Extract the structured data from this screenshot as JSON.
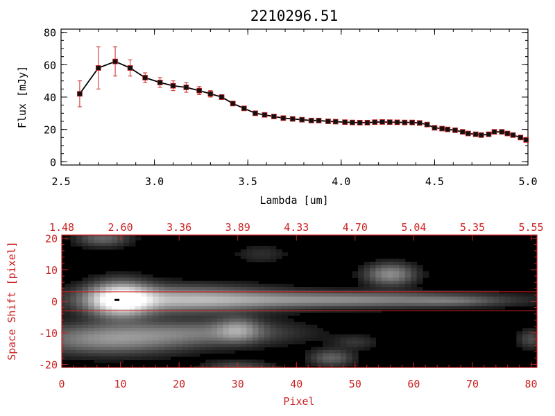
{
  "title": "2210296.51",
  "colors": {
    "axis_black": "#000000",
    "axis_red": "#cc2222",
    "marker": "#111111",
    "errorbar": "#cc2222",
    "background": "#ffffff",
    "image_bg": "#000000"
  },
  "chart_data": [
    {
      "type": "line",
      "xlabel": "Lambda [um]",
      "ylabel": "Flux [mJy]",
      "xlim": [
        2.5,
        5.0
      ],
      "ylim": [
        -2,
        82
      ],
      "x_ticks": [
        "2.5",
        "3.0",
        "3.5",
        "4.0",
        "4.5",
        "5.0"
      ],
      "y_ticks": [
        "0",
        "20",
        "40",
        "60",
        "80"
      ],
      "grid": false,
      "series": [
        {
          "x": [
            2.6,
            2.7,
            2.79,
            2.87,
            2.95,
            3.03,
            3.1,
            3.17,
            3.24,
            3.3,
            3.36,
            3.42,
            3.48,
            3.54,
            3.59,
            3.64,
            3.69,
            3.74,
            3.79,
            3.84,
            3.88,
            3.93,
            3.97,
            4.02,
            4.06,
            4.1,
            4.14,
            4.18,
            4.22,
            4.26,
            4.3,
            4.34,
            4.38,
            4.42,
            4.46,
            4.5,
            4.54,
            4.57,
            4.61,
            4.65,
            4.68,
            4.72,
            4.75,
            4.79,
            4.82,
            4.86,
            4.89,
            4.92,
            4.96,
            4.99
          ],
          "y": [
            42,
            58,
            62,
            58,
            52,
            49,
            47,
            46,
            44,
            42,
            40,
            36,
            33,
            30,
            29,
            28,
            27,
            26.5,
            26,
            25.5,
            25.5,
            25,
            24.8,
            24.5,
            24.3,
            24.2,
            24.2,
            24.5,
            24.6,
            24.5,
            24.4,
            24.3,
            24.3,
            24,
            23,
            21,
            20.5,
            20,
            19.5,
            18.5,
            17.5,
            17,
            16.5,
            17,
            18.5,
            18.5,
            17.5,
            16.5,
            15,
            13.5
          ],
          "yerr": [
            8,
            13,
            9,
            5,
            3,
            3,
            3,
            3,
            2.5,
            2,
            1.5,
            1,
            1,
            1,
            1,
            0.8,
            0.8,
            0.8,
            0.8,
            0.8,
            0.8,
            0.8,
            0.8,
            0.8,
            0.8,
            0.8,
            0.8,
            0.8,
            0.8,
            0.8,
            0.8,
            0.8,
            0.8,
            0.8,
            0.8,
            0.8,
            0.8,
            0.8,
            0.8,
            0.8,
            0.8,
            0.8,
            0.8,
            0.8,
            0.8,
            0.8,
            0.8,
            0.8,
            0.8,
            0.8
          ]
        }
      ]
    },
    {
      "type": "heatmap",
      "xlabel": "Pixel",
      "ylabel": "Space Shift [pixel]",
      "xlim": [
        0,
        81
      ],
      "ylim": [
        -21,
        21
      ],
      "x_ticks": [
        "0",
        "10",
        "20",
        "30",
        "40",
        "50",
        "60",
        "70",
        "80"
      ],
      "y_ticks": [
        "-20",
        "-10",
        "0",
        "10",
        "20"
      ],
      "top_axis_ticks": [
        "1.48",
        "2.60",
        "3.36",
        "3.89",
        "4.33",
        "4.70",
        "5.04",
        "5.35",
        "5.55"
      ],
      "aperture_lines": [
        -3,
        3
      ],
      "sources": [
        {
          "x": 10,
          "y": 0.5,
          "sx": 3.5,
          "sy": 3.5,
          "amp": 1.0
        },
        {
          "x": 20,
          "y": 0.5,
          "sx": 11,
          "sy": 2.8,
          "amp": 0.55
        },
        {
          "x": 48,
          "y": 0.5,
          "sx": 17,
          "sy": 1.6,
          "amp": 0.45
        },
        {
          "x": 67,
          "y": 0.0,
          "sx": 5,
          "sy": 1.0,
          "amp": 0.15
        },
        {
          "x": 8,
          "y": -12,
          "sx": 9,
          "sy": 3.2,
          "amp": 0.45
        },
        {
          "x": 25,
          "y": -10,
          "sx": 10,
          "sy": 2.6,
          "amp": 0.3
        },
        {
          "x": 30,
          "y": -9,
          "sx": 2.5,
          "sy": 2.5,
          "amp": 0.35
        },
        {
          "x": 56,
          "y": 8.5,
          "sx": 2.8,
          "sy": 2.3,
          "amp": 0.45
        },
        {
          "x": 7,
          "y": 20,
          "sx": 3,
          "sy": 1.8,
          "amp": 0.3
        },
        {
          "x": 46,
          "y": -18,
          "sx": 2.5,
          "sy": 1.8,
          "amp": 0.28
        },
        {
          "x": 30,
          "y": -21,
          "sx": 4,
          "sy": 1.5,
          "amp": 0.2
        },
        {
          "x": 80,
          "y": -12,
          "sx": 1.5,
          "sy": 2,
          "amp": 0.2
        },
        {
          "x": 50,
          "y": -13,
          "sx": 2.5,
          "sy": 1.5,
          "amp": 0.12
        },
        {
          "x": 34,
          "y": 15,
          "sx": 3,
          "sy": 2,
          "amp": 0.1
        }
      ]
    }
  ]
}
